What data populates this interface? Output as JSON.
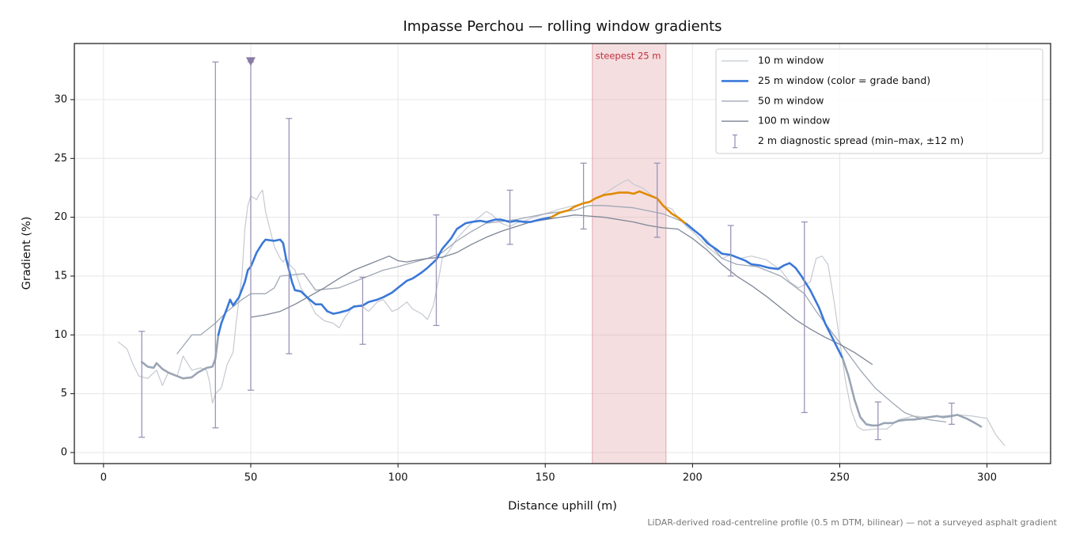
{
  "chart_data": {
    "type": "line",
    "title": "Impasse Perchou — rolling window gradients",
    "x_label": "Distance uphill (m)",
    "y_label": "Gradient (%)",
    "footnote": "LiDAR-derived road-centreline profile (0.5 m DTM, bilinear) — not a surveyed asphalt gradient",
    "xlim": [
      -9.9,
      321.6
    ],
    "ylim": [
      -0.94,
      34.77
    ],
    "xticks": [
      0,
      50,
      100,
      150,
      200,
      250,
      300
    ],
    "yticks": [
      0,
      5,
      10,
      15,
      20,
      25,
      30
    ],
    "grid": true,
    "legend": "upper right",
    "series": [
      {
        "name": "10 m window",
        "color": "#c5c9d0",
        "width": 1.2,
        "x": [
          5,
          8,
          10,
          12,
          15,
          18,
          20,
          22,
          25,
          27,
          30,
          33,
          35,
          36,
          37,
          38,
          40,
          42,
          44,
          45,
          47,
          48,
          49,
          50,
          52,
          53,
          54,
          55,
          56,
          57,
          58,
          60,
          61,
          62,
          63,
          65,
          67,
          70,
          72,
          75,
          78,
          80,
          82,
          85,
          88,
          90,
          93,
          95,
          98,
          100,
          103,
          105,
          108,
          110,
          112,
          114,
          115,
          117,
          120,
          123,
          125,
          128,
          130,
          132,
          135,
          138,
          140,
          143,
          145,
          150,
          155,
          160,
          165,
          170,
          175,
          178,
          180,
          183,
          185,
          188,
          190,
          193,
          195,
          198,
          200,
          205,
          210,
          213,
          216,
          220,
          225,
          230,
          233,
          236,
          240,
          242,
          244,
          246,
          248,
          250,
          252,
          254,
          256,
          258,
          262,
          266,
          270,
          275,
          280,
          285,
          290,
          295,
          300,
          303,
          306
        ],
        "values": [
          9.4,
          8.8,
          7.5,
          6.5,
          6.3,
          7.0,
          5.7,
          6.8,
          6.5,
          8.2,
          7.0,
          7.2,
          7.0,
          6.0,
          4.2,
          5.0,
          5.5,
          7.5,
          8.5,
          11,
          15,
          19,
          21,
          21.8,
          21.5,
          22,
          22.3,
          20.5,
          19.5,
          18.5,
          17.5,
          16.5,
          16.2,
          16.5,
          16.0,
          15.5,
          14.0,
          12.8,
          11.8,
          11.2,
          11.0,
          10.6,
          11.5,
          12.5,
          12.4,
          12.0,
          12.8,
          13.0,
          12.0,
          12.2,
          12.8,
          12.2,
          11.8,
          11.3,
          12.5,
          15,
          16.5,
          17,
          18.2,
          19,
          19.5,
          20.1,
          20.5,
          20.2,
          19.5,
          19.2,
          19.5,
          19.7,
          19.9,
          20.3,
          20.7,
          21.0,
          21.3,
          22.0,
          22.8,
          23.2,
          22.8,
          22.5,
          22.1,
          21.5,
          21.0,
          20.7,
          20.0,
          19.2,
          18.8,
          17.5,
          16.5,
          16.8,
          16.5,
          16.7,
          16.4,
          15.5,
          14.5,
          14.0,
          14.5,
          16.5,
          16.7,
          16,
          13,
          9.5,
          6,
          3.5,
          2.2,
          1.9,
          2.0,
          2.0,
          2.8,
          3.1,
          3.0,
          3.1,
          3.2,
          3.1,
          2.9,
          1.5,
          0.6
        ]
      },
      {
        "name": "25 m window (color = grade band)",
        "color": "#3a78d8",
        "width": 2.6,
        "band_thresholds": [
          9,
          20
        ],
        "band_colors": [
          "#9aa5b4",
          "#3a78d8",
          "#e08a00"
        ],
        "x": [
          13,
          15,
          17,
          18,
          20,
          22,
          25,
          27,
          30,
          32,
          35,
          37,
          38,
          39,
          40,
          42,
          43,
          44,
          46,
          48,
          49,
          50,
          52,
          54,
          55,
          58,
          60,
          61,
          62,
          64,
          65,
          67,
          70,
          72,
          74,
          76,
          78,
          80,
          83,
          85,
          88,
          90,
          93,
          95,
          98,
          100,
          103,
          105,
          108,
          110,
          113,
          115,
          118,
          120,
          123,
          125,
          128,
          130,
          133,
          135,
          138,
          140,
          143,
          145,
          148,
          150,
          152,
          155,
          158,
          160,
          163,
          165,
          167,
          170,
          173,
          175,
          178,
          180,
          182,
          185,
          188,
          190,
          193,
          195,
          198,
          200,
          203,
          205,
          208,
          210,
          213,
          215,
          218,
          220,
          223,
          226,
          229,
          231,
          233,
          235,
          237,
          240,
          243,
          245,
          247,
          249,
          251,
          253,
          255,
          257,
          259,
          261,
          263,
          265,
          268,
          270,
          273,
          275,
          278,
          280,
          283,
          285,
          288,
          290,
          293,
          296,
          298
        ],
        "values": [
          7.7,
          7.3,
          7.2,
          7.6,
          7.1,
          6.8,
          6.5,
          6.3,
          6.4,
          6.8,
          7.2,
          7.3,
          8.0,
          10,
          11,
          12.3,
          13,
          12.5,
          13.2,
          14.5,
          15.5,
          15.8,
          17.0,
          17.8,
          18.1,
          18.0,
          18.1,
          17.8,
          16.5,
          14.5,
          13.8,
          13.7,
          13.0,
          12.6,
          12.6,
          12.0,
          11.8,
          11.9,
          12.1,
          12.4,
          12.5,
          12.8,
          13.0,
          13.2,
          13.6,
          14.0,
          14.6,
          14.8,
          15.3,
          15.7,
          16.4,
          17.3,
          18.2,
          19.0,
          19.5,
          19.6,
          19.7,
          19.6,
          19.8,
          19.8,
          19.6,
          19.7,
          19.6,
          19.6,
          19.8,
          19.9,
          20.0,
          20.4,
          20.6,
          20.9,
          21.2,
          21.3,
          21.6,
          21.9,
          22.0,
          22.1,
          22.1,
          22.0,
          22.2,
          21.9,
          21.6,
          21.0,
          20.3,
          20.0,
          19.4,
          19.0,
          18.4,
          17.8,
          17.3,
          16.9,
          16.8,
          16.6,
          16.3,
          16.0,
          15.9,
          15.7,
          15.6,
          15.9,
          16.1,
          15.7,
          15.0,
          13.8,
          12.3,
          11.0,
          10.0,
          9.0,
          8.0,
          6.5,
          4.5,
          3.0,
          2.4,
          2.3,
          2.3,
          2.5,
          2.5,
          2.7,
          2.8,
          2.8,
          2.9,
          3.0,
          3.1,
          3.0,
          3.1,
          3.2,
          2.9,
          2.5,
          2.2
        ]
      },
      {
        "name": "50 m window",
        "color": "#a0a8b5",
        "width": 1.3,
        "x": [
          25,
          30,
          33,
          38,
          42,
          47,
          50,
          55,
          58,
          60,
          68,
          72,
          80,
          88,
          95,
          100,
          110,
          115,
          120,
          125,
          130,
          140,
          150,
          160,
          165,
          170,
          180,
          190,
          198,
          205,
          210,
          215,
          222,
          230,
          238,
          242,
          248,
          252,
          257,
          262,
          268,
          272,
          276,
          280,
          286
        ],
        "values": [
          8.4,
          10,
          10,
          11,
          12,
          13,
          13.5,
          13.5,
          14.0,
          15,
          15.2,
          13.8,
          14,
          14.8,
          15.5,
          15.8,
          16.5,
          17,
          18,
          18.8,
          19.5,
          19.8,
          20.3,
          20.6,
          21,
          21,
          20.8,
          20.3,
          19.5,
          18,
          16.5,
          16.0,
          15.8,
          15,
          13.5,
          12.0,
          10,
          8.7,
          7,
          5.5,
          4.2,
          3.4,
          3.0,
          2.8,
          2.6
        ]
      },
      {
        "name": "100 m window",
        "color": "#7d8595",
        "width": 1.3,
        "x": [
          50,
          55,
          60,
          65,
          70,
          75,
          80,
          85,
          90,
          95,
          97,
          100,
          103,
          105,
          110,
          115,
          120,
          125,
          130,
          135,
          140,
          145,
          150,
          155,
          160,
          165,
          170,
          175,
          180,
          185,
          190,
          195,
          200,
          205,
          210,
          215,
          220,
          225,
          230,
          235,
          240,
          245,
          250,
          255,
          261
        ],
        "values": [
          11.5,
          11.7,
          12.0,
          12.6,
          13.3,
          14,
          14.8,
          15.5,
          16.0,
          16.5,
          16.7,
          16.3,
          16.2,
          16.3,
          16.5,
          16.6,
          17,
          17.7,
          18.3,
          18.8,
          19.2,
          19.6,
          19.8,
          20.0,
          20.2,
          20.1,
          20.0,
          19.8,
          19.6,
          19.3,
          19.1,
          19.0,
          18.2,
          17.2,
          16.0,
          15.0,
          14.2,
          13.3,
          12.3,
          11.3,
          10.5,
          9.8,
          9.2,
          8.5,
          7.5
        ]
      }
    ],
    "spread": {
      "name": "2 m diagnostic spread (min–max, ±12 m)",
      "color": "#9b94b8",
      "x": [
        13,
        38,
        50,
        63,
        88,
        113,
        138,
        163,
        188,
        213,
        238,
        263,
        288
      ],
      "low": [
        1.3,
        2.1,
        5.3,
        8.4,
        9.2,
        10.8,
        17.7,
        19.0,
        18.3,
        15.0,
        3.4,
        1.1,
        2.4
      ],
      "high": [
        10.3,
        33.2,
        33.2,
        28.4,
        14.9,
        20.2,
        22.3,
        24.6,
        24.6,
        19.3,
        19.6,
        4.3,
        4.2
      ]
    },
    "markers": [
      {
        "x": 50,
        "y": 33.2,
        "color": "#8a7aa6"
      }
    ],
    "span": {
      "x": [
        166,
        191
      ],
      "label": "steepest 25 m",
      "color": "#e3a7ae",
      "label_color": "#c0303a"
    }
  }
}
